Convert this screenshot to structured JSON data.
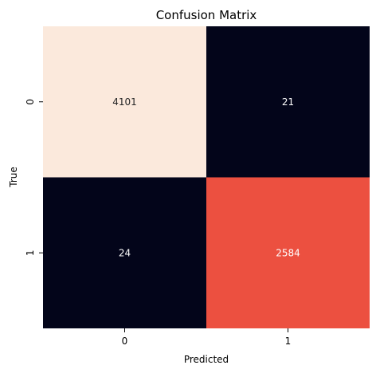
{
  "chart_data": {
    "type": "heatmap",
    "title": "Confusion Matrix",
    "xlabel": "Predicted",
    "ylabel": "True",
    "x_categories": [
      "0",
      "1"
    ],
    "y_categories": [
      "0",
      "1"
    ],
    "values": [
      [
        4101,
        21
      ],
      [
        24,
        2584
      ]
    ],
    "colormap": "rocket",
    "colorbar": false,
    "cell_colors": [
      [
        "#fbe9dc",
        "#03051a"
      ],
      [
        "#03051a",
        "#ec5040"
      ]
    ],
    "text_colors": [
      [
        "#262626",
        "#ffffff"
      ],
      [
        "#ffffff",
        "#ffffff"
      ]
    ]
  }
}
